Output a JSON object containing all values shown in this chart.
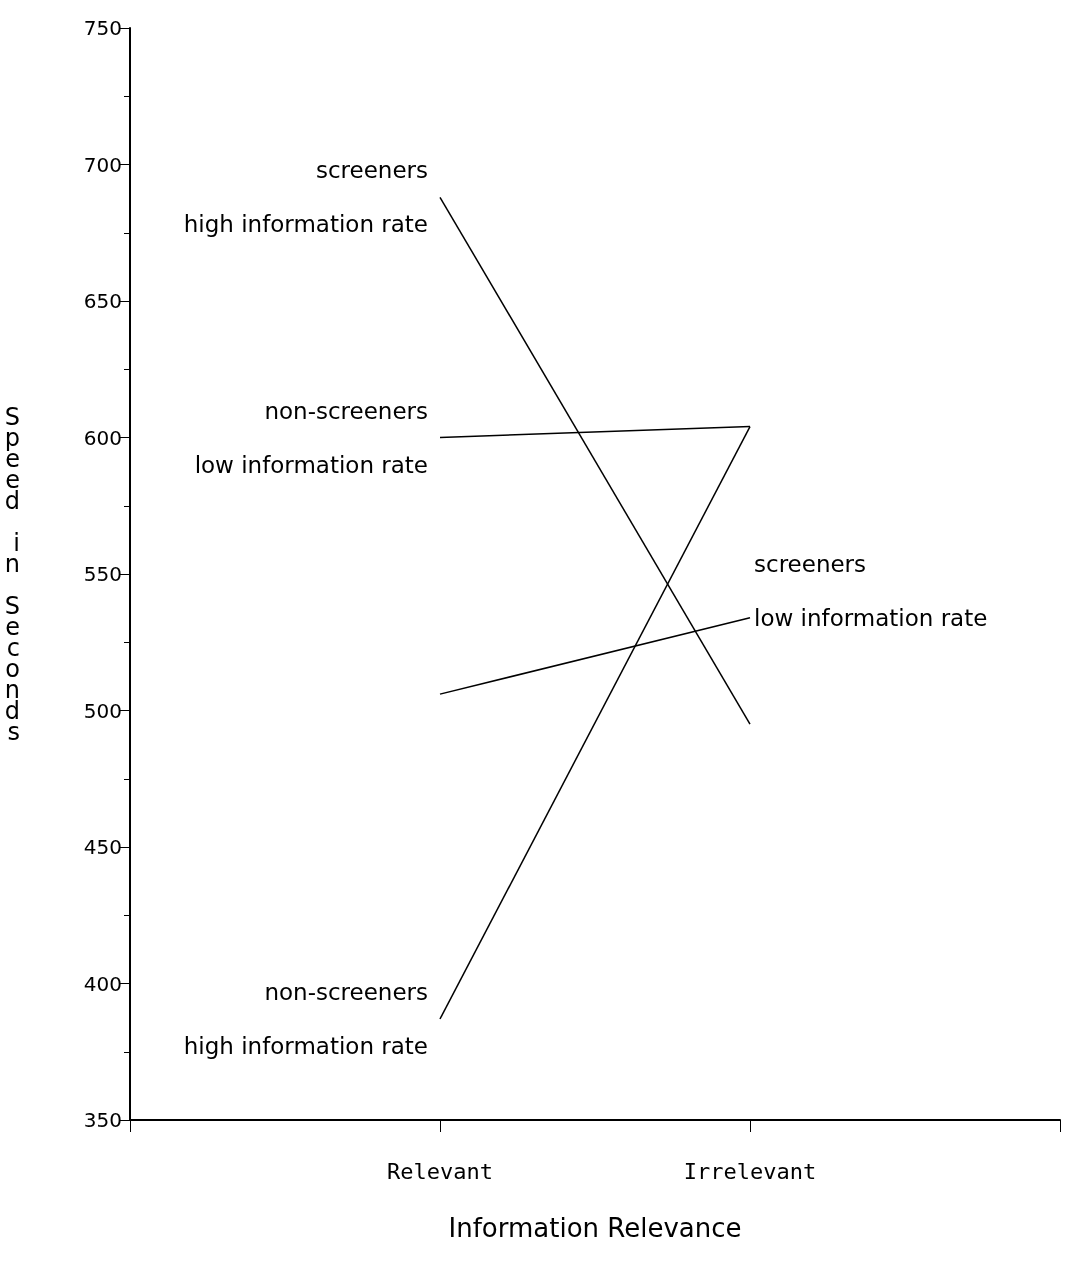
{
  "chart_data": {
    "type": "line",
    "xlabel": "Information Relevance",
    "ylabel": "Speed in Seconds",
    "categories": [
      null,
      "Relevant",
      "Irrelevant",
      null
    ],
    "series": [
      {
        "name": "screeners\nhigh information rate",
        "color": "#000000",
        "values": [
          null,
          688,
          495,
          null
        ]
      },
      {
        "name": "non-screeners\nlow information rate",
        "color": "#000000",
        "values": [
          null,
          600,
          604,
          null
        ]
      },
      {
        "name": "non-screeners\nhigh information rate",
        "color": "#000000",
        "values": [
          null,
          387,
          604,
          null
        ]
      },
      {
        "name": "screeners\nlow information rate",
        "color": "#000000",
        "values": [
          null,
          506,
          534,
          null
        ]
      }
    ],
    "ylim": [
      350,
      750
    ],
    "yticks": [
      350,
      400,
      450,
      500,
      550,
      600,
      650,
      700,
      750
    ],
    "grid": false,
    "marker": "none",
    "line_style": "solid"
  }
}
